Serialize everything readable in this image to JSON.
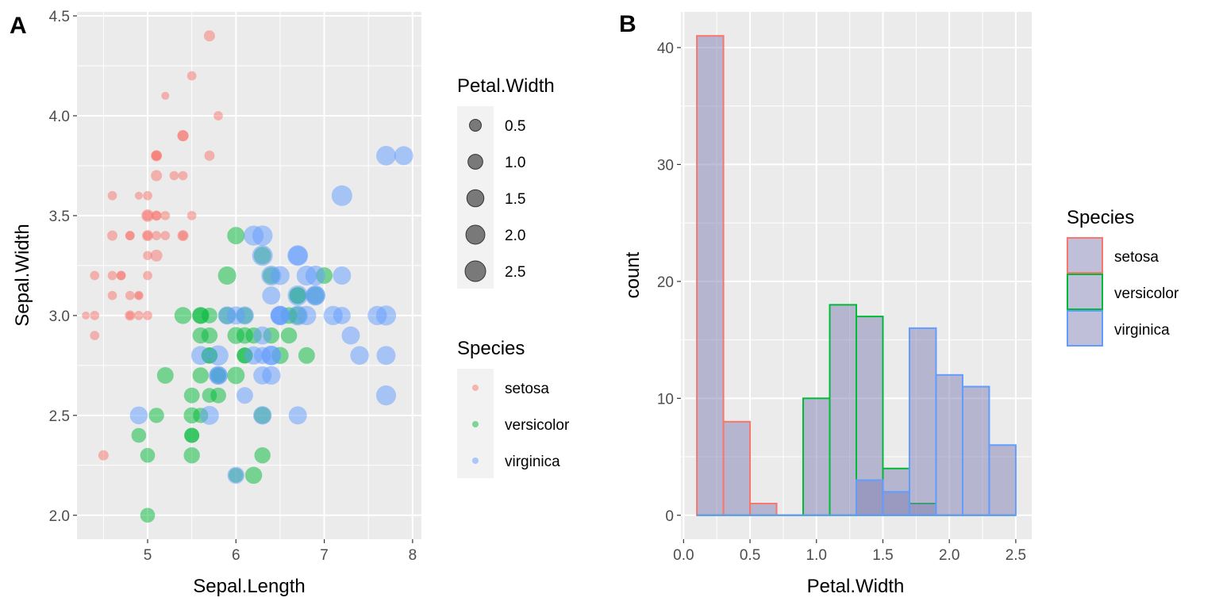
{
  "panels": {
    "a_label": "A",
    "b_label": "B"
  },
  "colors": {
    "setosa": "#F8766D",
    "versicolor": "#00BA38",
    "virginica": "#619CFF",
    "hist_fill": "#7F7FB3",
    "panel_bg": "#EBEBEB",
    "grid": "#FFFFFF",
    "tick_text": "#4D4D4D"
  },
  "chart_data": [
    {
      "type": "scatter",
      "xlabel": "Sepal.Length",
      "ylabel": "Sepal.Width",
      "xlim": [
        4.2,
        8.1
      ],
      "ylim": [
        1.88,
        4.52
      ],
      "xticks": [
        5,
        6,
        7,
        8
      ],
      "yticks": [
        2.0,
        2.5,
        3.0,
        3.5,
        4.0,
        4.5
      ],
      "ytick_labels": [
        "2.0",
        "2.5",
        "3.0",
        "3.5",
        "4.0",
        "4.5"
      ],
      "grid": true,
      "point_alpha": 0.5,
      "size_legend": {
        "title": "Petal.Width",
        "labels": [
          "0.5",
          "1.0",
          "1.5",
          "2.0",
          "2.5"
        ],
        "values": [
          0.5,
          1.0,
          1.5,
          2.0,
          2.5
        ]
      },
      "color_legend": {
        "title": "Species",
        "labels": [
          "setosa",
          "versicolor",
          "virginica"
        ]
      },
      "series": [
        {
          "name": "setosa",
          "points": [
            [
              5.1,
              3.5,
              0.2
            ],
            [
              4.9,
              3.0,
              0.2
            ],
            [
              4.7,
              3.2,
              0.2
            ],
            [
              4.6,
              3.1,
              0.2
            ],
            [
              5.0,
              3.6,
              0.2
            ],
            [
              5.4,
              3.9,
              0.4
            ],
            [
              4.6,
              3.4,
              0.3
            ],
            [
              5.0,
              3.4,
              0.2
            ],
            [
              4.4,
              2.9,
              0.2
            ],
            [
              4.9,
              3.1,
              0.1
            ],
            [
              5.4,
              3.7,
              0.2
            ],
            [
              4.8,
              3.4,
              0.2
            ],
            [
              4.8,
              3.0,
              0.1
            ],
            [
              4.3,
              3.0,
              0.1
            ],
            [
              5.8,
              4.0,
              0.2
            ],
            [
              5.7,
              4.4,
              0.4
            ],
            [
              5.4,
              3.9,
              0.4
            ],
            [
              5.1,
              3.5,
              0.3
            ],
            [
              5.7,
              3.8,
              0.3
            ],
            [
              5.1,
              3.8,
              0.3
            ],
            [
              5.4,
              3.4,
              0.2
            ],
            [
              5.1,
              3.7,
              0.4
            ],
            [
              4.6,
              3.6,
              0.2
            ],
            [
              5.1,
              3.3,
              0.5
            ],
            [
              4.8,
              3.4,
              0.2
            ],
            [
              5.0,
              3.0,
              0.2
            ],
            [
              5.0,
              3.4,
              0.4
            ],
            [
              5.2,
              3.5,
              0.2
            ],
            [
              5.2,
              3.4,
              0.2
            ],
            [
              4.7,
              3.2,
              0.2
            ],
            [
              4.8,
              3.1,
              0.2
            ],
            [
              5.4,
              3.4,
              0.4
            ],
            [
              5.2,
              4.1,
              0.1
            ],
            [
              5.5,
              4.2,
              0.2
            ],
            [
              4.9,
              3.1,
              0.2
            ],
            [
              5.0,
              3.2,
              0.2
            ],
            [
              5.5,
              3.5,
              0.2
            ],
            [
              4.9,
              3.6,
              0.1
            ],
            [
              4.4,
              3.0,
              0.2
            ],
            [
              5.1,
              3.4,
              0.2
            ],
            [
              5.0,
              3.5,
              0.3
            ],
            [
              4.5,
              2.3,
              0.3
            ],
            [
              4.4,
              3.2,
              0.2
            ],
            [
              5.0,
              3.5,
              0.6
            ],
            [
              5.1,
              3.8,
              0.4
            ],
            [
              4.8,
              3.0,
              0.3
            ],
            [
              5.1,
              3.8,
              0.2
            ],
            [
              4.6,
              3.2,
              0.2
            ],
            [
              5.3,
              3.7,
              0.2
            ],
            [
              5.0,
              3.3,
              0.2
            ]
          ]
        },
        {
          "name": "versicolor",
          "points": [
            [
              7.0,
              3.2,
              1.4
            ],
            [
              6.4,
              3.2,
              1.5
            ],
            [
              6.9,
              3.1,
              1.5
            ],
            [
              5.5,
              2.3,
              1.3
            ],
            [
              6.5,
              2.8,
              1.5
            ],
            [
              5.7,
              2.8,
              1.3
            ],
            [
              6.3,
              3.3,
              1.6
            ],
            [
              4.9,
              2.4,
              1.0
            ],
            [
              6.6,
              2.9,
              1.3
            ],
            [
              5.2,
              2.7,
              1.4
            ],
            [
              5.0,
              2.0,
              1.0
            ],
            [
              5.9,
              3.0,
              1.5
            ],
            [
              6.0,
              2.2,
              1.0
            ],
            [
              6.1,
              2.9,
              1.4
            ],
            [
              5.6,
              2.9,
              1.3
            ],
            [
              6.7,
              3.1,
              1.4
            ],
            [
              5.6,
              3.0,
              1.5
            ],
            [
              5.8,
              2.7,
              1.0
            ],
            [
              6.2,
              2.2,
              1.5
            ],
            [
              5.6,
              2.5,
              1.1
            ],
            [
              5.9,
              3.2,
              1.8
            ],
            [
              6.1,
              2.8,
              1.3
            ],
            [
              6.3,
              2.5,
              1.5
            ],
            [
              6.1,
              2.8,
              1.2
            ],
            [
              6.4,
              2.9,
              1.3
            ],
            [
              6.6,
              3.0,
              1.4
            ],
            [
              6.8,
              2.8,
              1.4
            ],
            [
              6.7,
              3.0,
              1.7
            ],
            [
              6.0,
              2.9,
              1.5
            ],
            [
              5.7,
              2.6,
              1.0
            ],
            [
              5.5,
              2.4,
              1.1
            ],
            [
              5.5,
              2.4,
              1.0
            ],
            [
              5.8,
              2.7,
              1.2
            ],
            [
              6.0,
              2.7,
              1.6
            ],
            [
              5.4,
              3.0,
              1.5
            ],
            [
              6.0,
              3.4,
              1.6
            ],
            [
              6.7,
              3.1,
              1.5
            ],
            [
              6.3,
              2.3,
              1.3
            ],
            [
              5.6,
              3.0,
              1.3
            ],
            [
              5.5,
              2.5,
              1.3
            ],
            [
              5.5,
              2.6,
              1.2
            ],
            [
              6.1,
              3.0,
              1.4
            ],
            [
              5.8,
              2.6,
              1.2
            ],
            [
              5.0,
              2.3,
              1.0
            ],
            [
              5.6,
              2.7,
              1.3
            ],
            [
              5.7,
              3.0,
              1.2
            ],
            [
              5.7,
              2.9,
              1.3
            ],
            [
              6.2,
              2.9,
              1.3
            ],
            [
              5.1,
              2.5,
              1.1
            ],
            [
              5.7,
              2.8,
              1.3
            ]
          ]
        },
        {
          "name": "virginica",
          "points": [
            [
              6.3,
              3.3,
              2.5
            ],
            [
              5.8,
              2.7,
              1.9
            ],
            [
              7.1,
              3.0,
              2.1
            ],
            [
              6.3,
              2.9,
              1.8
            ],
            [
              6.5,
              3.0,
              2.2
            ],
            [
              7.6,
              3.0,
              2.1
            ],
            [
              4.9,
              2.5,
              1.7
            ],
            [
              7.3,
              2.9,
              1.8
            ],
            [
              6.7,
              2.5,
              1.8
            ],
            [
              7.2,
              3.6,
              2.5
            ],
            [
              6.5,
              3.2,
              2.0
            ],
            [
              6.4,
              2.7,
              1.9
            ],
            [
              6.8,
              3.0,
              2.1
            ],
            [
              5.7,
              2.5,
              2.0
            ],
            [
              5.8,
              2.8,
              2.4
            ],
            [
              6.4,
              3.2,
              2.3
            ],
            [
              6.5,
              3.0,
              1.8
            ],
            [
              7.7,
              3.8,
              2.2
            ],
            [
              7.7,
              2.6,
              2.3
            ],
            [
              6.0,
              2.2,
              1.5
            ],
            [
              6.9,
              3.2,
              2.3
            ],
            [
              5.6,
              2.8,
              2.0
            ],
            [
              7.7,
              2.8,
              2.0
            ],
            [
              6.3,
              2.7,
              1.8
            ],
            [
              6.7,
              3.3,
              2.1
            ],
            [
              7.2,
              3.2,
              1.8
            ],
            [
              6.2,
              2.8,
              1.8
            ],
            [
              6.1,
              3.0,
              1.8
            ],
            [
              6.4,
              2.8,
              2.1
            ],
            [
              7.2,
              3.0,
              1.6
            ],
            [
              7.4,
              2.8,
              1.9
            ],
            [
              7.9,
              3.8,
              2.0
            ],
            [
              6.4,
              2.8,
              2.2
            ],
            [
              6.3,
              2.8,
              1.5
            ],
            [
              6.1,
              2.6,
              1.4
            ],
            [
              7.7,
              3.0,
              2.3
            ],
            [
              6.3,
              3.4,
              2.4
            ],
            [
              6.4,
              3.1,
              1.8
            ],
            [
              6.0,
              3.0,
              1.8
            ],
            [
              6.9,
              3.1,
              2.1
            ],
            [
              6.7,
              3.1,
              2.4
            ],
            [
              6.9,
              3.1,
              2.3
            ],
            [
              5.8,
              2.7,
              1.9
            ],
            [
              6.8,
              3.2,
              2.3
            ],
            [
              6.7,
              3.3,
              2.5
            ],
            [
              6.7,
              3.0,
              2.3
            ],
            [
              6.3,
              2.5,
              1.9
            ],
            [
              6.5,
              3.0,
              2.0
            ],
            [
              6.2,
              3.4,
              2.3
            ],
            [
              5.9,
              3.0,
              1.8
            ]
          ]
        }
      ]
    },
    {
      "type": "histogram",
      "xlabel": "Petal.Width",
      "ylabel": "count",
      "xlim": [
        -0.02,
        2.62
      ],
      "ylim": [
        -2.05,
        43.05
      ],
      "xticks": [
        0.0,
        0.5,
        1.0,
        1.5,
        2.0,
        2.5
      ],
      "xtick_labels": [
        "0.0",
        "0.5",
        "1.0",
        "1.5",
        "2.0",
        "2.5"
      ],
      "yticks": [
        0,
        10,
        20,
        30,
        40
      ],
      "ytick_labels": [
        "0",
        "10",
        "20",
        "30",
        "40"
      ],
      "grid": true,
      "fill_alpha": 0.5,
      "bins": [
        [
          0.1,
          0.3
        ],
        [
          0.3,
          0.5
        ],
        [
          0.5,
          0.7
        ],
        [
          0.7,
          0.9
        ],
        [
          0.9,
          1.1
        ],
        [
          1.1,
          1.3
        ],
        [
          1.3,
          1.5
        ],
        [
          1.5,
          1.7
        ],
        [
          1.7,
          1.9
        ],
        [
          1.9,
          2.1
        ],
        [
          2.1,
          2.3
        ],
        [
          2.3,
          2.5
        ]
      ],
      "legend": {
        "title": "Species",
        "labels": [
          "setosa",
          "versicolor",
          "virginica"
        ]
      },
      "series": [
        {
          "name": "setosa",
          "counts": [
            41,
            8,
            1,
            0,
            0,
            0,
            0,
            0,
            0,
            0,
            0,
            0
          ]
        },
        {
          "name": "versicolor",
          "counts": [
            0,
            0,
            0,
            0,
            10,
            18,
            17,
            4,
            1,
            0,
            0,
            0
          ]
        },
        {
          "name": "virginica",
          "counts": [
            0,
            0,
            0,
            0,
            0,
            0,
            3,
            2,
            16,
            12,
            11,
            6
          ]
        }
      ]
    }
  ]
}
